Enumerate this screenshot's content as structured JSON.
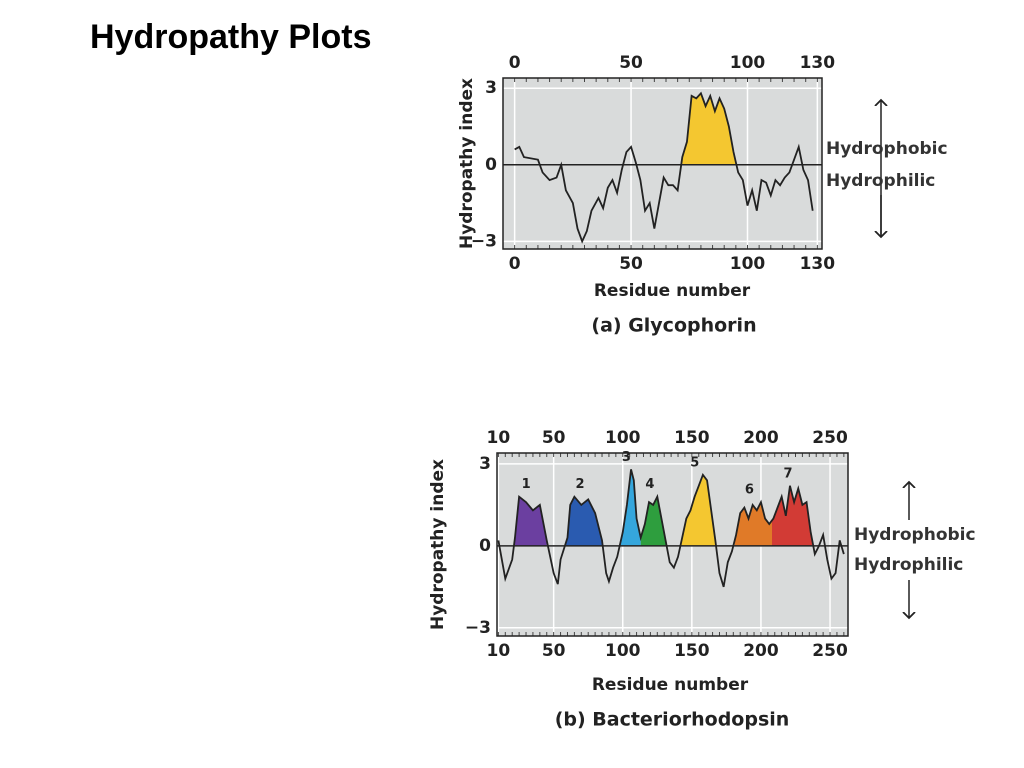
{
  "title": "Hydropathy Plots",
  "chart_data": [
    {
      "type": "line",
      "title": "(a) Glycophorin",
      "xlabel": "Residue number",
      "ylabel": "Hydropathy index",
      "annotations": [
        "Hydrophobic",
        "Hydrophilic"
      ],
      "xlim": [
        -5,
        132
      ],
      "ylim": [
        -3.3,
        3.4
      ],
      "xticks": [
        0,
        50,
        100,
        130
      ],
      "yticks": [
        {
          "value": -3,
          "label": "−3"
        },
        0,
        3
      ],
      "grid": true,
      "background": "#d9dbdb",
      "line_color": "#222222",
      "series": [
        {
          "name": "Glycophorin",
          "x": [
            0,
            2,
            4,
            10,
            12,
            15,
            18,
            20,
            22,
            25,
            27,
            29,
            31,
            33,
            36,
            38,
            40,
            42,
            44,
            46,
            48,
            50,
            52,
            54,
            56,
            58,
            60,
            62,
            64,
            66,
            68,
            70,
            72,
            74,
            76,
            78,
            80,
            82,
            84,
            86,
            88,
            90,
            92,
            94,
            96,
            98,
            100,
            102,
            104,
            106,
            108,
            110,
            112,
            114,
            116,
            118,
            120,
            122,
            124,
            126,
            128
          ],
          "values": [
            0.6,
            0.7,
            0.3,
            0.2,
            -0.3,
            -0.6,
            -0.5,
            0,
            -1,
            -1.5,
            -2.5,
            -3,
            -2.6,
            -1.8,
            -1.3,
            -1.7,
            -0.9,
            -0.6,
            -1.1,
            -0.2,
            0.5,
            0.7,
            0.1,
            -0.6,
            -1.8,
            -1.5,
            -2.5,
            -1.5,
            -0.5,
            -0.8,
            -0.8,
            -1.0,
            0.3,
            0.9,
            2.7,
            2.6,
            2.8,
            2.3,
            2.7,
            2.1,
            2.6,
            2.2,
            1.5,
            0.5,
            -0.3,
            -0.6,
            -1.6,
            -1.0,
            -1.8,
            -0.6,
            -0.7,
            -1.2,
            -0.6,
            -0.8,
            -0.5,
            -0.3,
            0.2,
            0.7,
            -0.2,
            -0.6,
            -1.8
          ]
        }
      ],
      "highlights": [
        {
          "from": 72,
          "to": 96,
          "color": "#f4c730"
        }
      ]
    },
    {
      "type": "line",
      "title": "(b) Bacteriorhodopsin",
      "xlabel": "Residue number",
      "ylabel": "Hydropathy index",
      "annotations": [
        "Hydrophobic",
        "Hydrophilic"
      ],
      "xlim": [
        9,
        263
      ],
      "ylim": [
        -3.3,
        3.4
      ],
      "xticks": [
        10,
        50,
        100,
        150,
        200,
        250
      ],
      "yticks": [
        {
          "value": -3,
          "label": "−3"
        },
        0,
        3
      ],
      "grid": true,
      "background": "#d9dbdb",
      "line_color": "#222222",
      "series": [
        {
          "name": "Bacteriorhodopsin",
          "x": [
            10,
            15,
            20,
            22,
            25,
            30,
            35,
            40,
            45,
            50,
            53,
            55,
            60,
            62,
            65,
            70,
            75,
            80,
            85,
            88,
            90,
            93,
            96,
            100,
            103,
            106,
            108,
            110,
            113,
            116,
            119,
            122,
            125,
            128,
            131,
            134,
            137,
            140,
            143,
            146,
            149,
            152,
            155,
            158,
            161,
            164,
            167,
            170,
            173,
            176,
            179,
            182,
            185,
            188,
            191,
            194,
            197,
            200,
            203,
            206,
            209,
            212,
            215,
            218,
            221,
            224,
            227,
            230,
            233,
            236,
            239,
            242,
            245,
            248,
            251,
            254,
            257,
            260
          ],
          "values": [
            0.2,
            -1.2,
            -0.5,
            0.3,
            1.8,
            1.6,
            1.3,
            1.5,
            0.2,
            -1.0,
            -1.4,
            -0.5,
            0.3,
            1.5,
            1.8,
            1.5,
            1.7,
            1.2,
            0.2,
            -1.0,
            -1.3,
            -0.8,
            -0.4,
            0.5,
            1.5,
            2.8,
            2.4,
            1.0,
            0.3,
            0.8,
            1.6,
            1.5,
            1.8,
            1.0,
            0.2,
            -0.6,
            -0.8,
            -0.4,
            0.3,
            1.0,
            1.3,
            1.8,
            2.2,
            2.6,
            2.4,
            1.3,
            0.2,
            -1.0,
            -1.5,
            -0.6,
            -0.2,
            0.4,
            1.2,
            1.4,
            1.0,
            1.5,
            1.3,
            1.6,
            1.0,
            0.8,
            1.0,
            1.4,
            1.8,
            1.1,
            2.2,
            1.6,
            2.1,
            1.5,
            1.6,
            0.5,
            -0.3,
            0.0,
            0.4,
            -0.5,
            -1.2,
            -1.0,
            0.2,
            -0.3
          ]
        }
      ],
      "highlights": [
        {
          "label": "1",
          "from": 21,
          "to": 45,
          "color": "#6b3fa0"
        },
        {
          "label": "2",
          "from": 58,
          "to": 86,
          "color": "#2a5bb0"
        },
        {
          "label": "3",
          "from": 98,
          "to": 113,
          "color": "#35a6dc"
        },
        {
          "label": "4",
          "from": 113,
          "to": 132,
          "color": "#2e9e3e"
        },
        {
          "label": "5",
          "from": 142,
          "to": 168,
          "color": "#f4c730"
        },
        {
          "label": "6",
          "from": 181,
          "to": 208,
          "color": "#e07a28"
        },
        {
          "label": "7",
          "from": 208,
          "to": 237,
          "color": "#d23b35"
        }
      ]
    }
  ]
}
